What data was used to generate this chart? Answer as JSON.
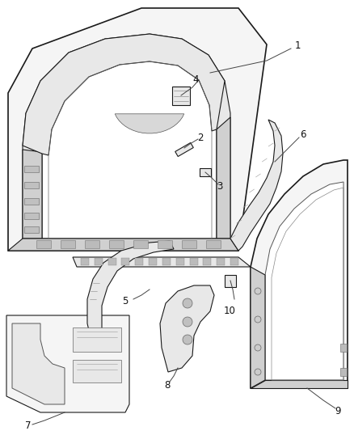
{
  "background_color": "#ffffff",
  "figsize": [
    4.38,
    5.33
  ],
  "dpi": 100,
  "line_color": "#1a1a1a",
  "fill_light": "#f5f5f5",
  "fill_mid": "#e8e8e8",
  "fill_dark": "#d0d0d0",
  "label_fontsize": 8.5,
  "leader_color": "#444444"
}
